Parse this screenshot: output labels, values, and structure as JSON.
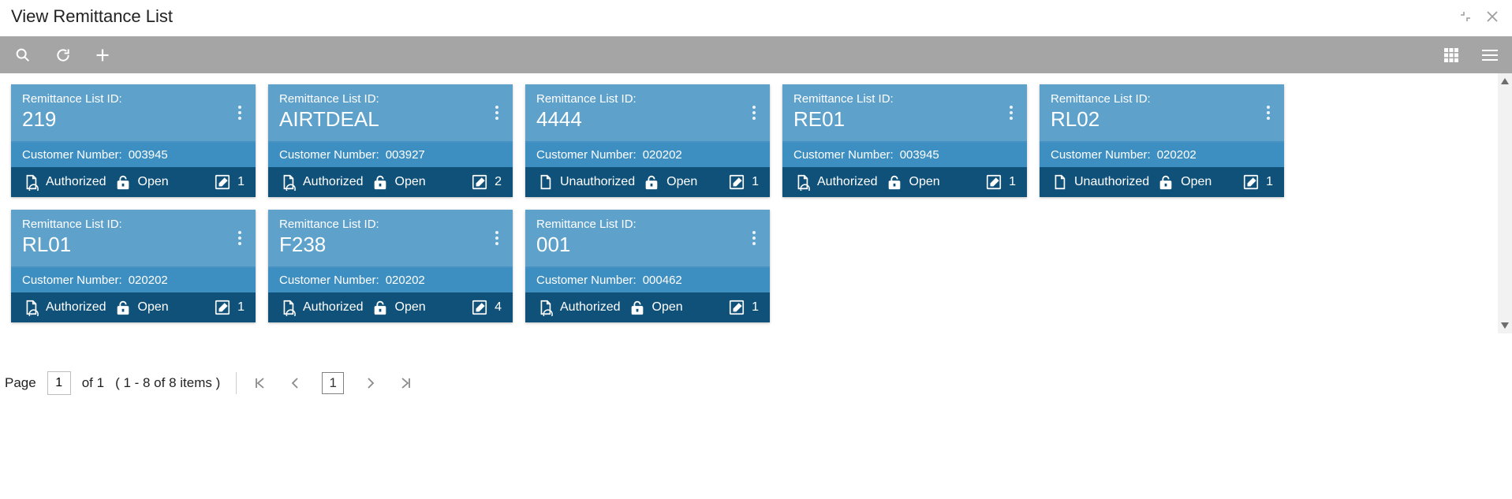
{
  "colors": {
    "toolbar_bg": "#a5a5a5",
    "card_head_bg": "#5ea1cb",
    "card_sub_bg": "#3e8fc1",
    "card_status_bg": "#10517a",
    "text_on_card": "#ffffff",
    "title_text": "#1a1a1a",
    "scroll_bg": "#f2f2f2"
  },
  "header": {
    "title": "View Remittance List"
  },
  "labels": {
    "id_label": "Remittance List ID:",
    "customer_label": "Customer Number:"
  },
  "cards": [
    {
      "id": "219",
      "customer": "003945",
      "auth": "Authorized",
      "lock": "Open",
      "edits": "1"
    },
    {
      "id": "AIRTDEAL",
      "customer": "003927",
      "auth": "Authorized",
      "lock": "Open",
      "edits": "2"
    },
    {
      "id": "4444",
      "customer": "020202",
      "auth": "Unauthorized",
      "lock": "Open",
      "edits": "1"
    },
    {
      "id": "RE01",
      "customer": "003945",
      "auth": "Authorized",
      "lock": "Open",
      "edits": "1"
    },
    {
      "id": "RL02",
      "customer": "020202",
      "auth": "Unauthorized",
      "lock": "Open",
      "edits": "1"
    },
    {
      "id": "RL01",
      "customer": "020202",
      "auth": "Authorized",
      "lock": "Open",
      "edits": "1"
    },
    {
      "id": "F238",
      "customer": "020202",
      "auth": "Authorized",
      "lock": "Open",
      "edits": "4"
    },
    {
      "id": "001",
      "customer": "000462",
      "auth": "Authorized",
      "lock": "Open",
      "edits": "1"
    }
  ],
  "pager": {
    "page_label": "Page",
    "current_page": "1",
    "of_text": "of 1",
    "range_text": "( 1 - 8 of 8 items )",
    "current_box": "1"
  }
}
